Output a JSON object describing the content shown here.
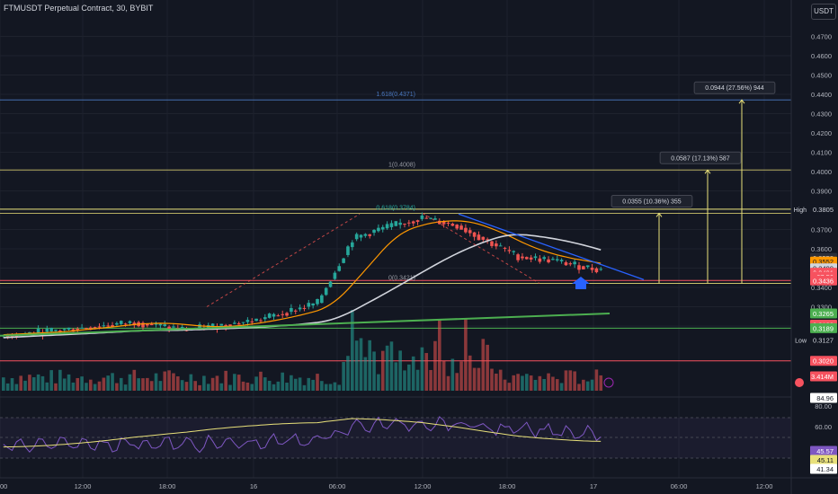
{
  "header": {
    "title": "FTMUSDT Perpetual Contract, 30, BYBIT",
    "currency_button": "USDT"
  },
  "chart_data": {
    "type": "candlestick",
    "price_axis_ticks": [
      "0.4700",
      "0.4600",
      "0.4500",
      "0.4400",
      "0.4300",
      "0.4200",
      "0.4100",
      "0.4000",
      "0.3900",
      "0.3800",
      "0.3700",
      "0.3600",
      "0.3500",
      "0.3400",
      "0.3300"
    ],
    "time_axis_ticks": [
      "00",
      "12:00",
      "18:00",
      "16",
      "06:00",
      "12:00",
      "18:00",
      "17",
      "06:00",
      "12:00"
    ],
    "fib_levels": [
      {
        "label": "1.618(0.4371)",
        "price": 0.4371
      },
      {
        "label": "1(0.4008)",
        "price": 0.4008
      },
      {
        "label": "0.618(0.3784)",
        "price": 0.3784
      },
      {
        "label": "0(0.3421)",
        "price": 0.3421
      }
    ],
    "targets": [
      {
        "label": "0.0355 (10.36%) 355",
        "price": 0.3784
      },
      {
        "label": "0.0587 (17.13%) 587",
        "price": 0.4008
      },
      {
        "label": "0.0944 (27.56%) 944",
        "price": 0.4371
      }
    ],
    "horizontal_lines": [
      {
        "price": 0.3805,
        "color": "#e8e07a"
      },
      {
        "price": 0.3436,
        "color": "#f7525f"
      },
      {
        "price": 0.3421,
        "color": "#e8e07a"
      },
      {
        "price": 0.3189,
        "color": "#4caf50"
      },
      {
        "price": 0.302,
        "color": "#f7525f"
      }
    ],
    "price_labels": [
      {
        "text": "High",
        "value": "0.3805",
        "bg": "#131722",
        "fg": "#d1d4dc",
        "price": 0.3805
      },
      {
        "text": "",
        "value": "0.3553",
        "bg": "#2a2e39",
        "fg": "#d1d4dc",
        "price": 0.3553
      },
      {
        "text": "",
        "value": "0.3552",
        "bg": "#ff9800",
        "fg": "#131722",
        "price": 0.3534
      },
      {
        "text": "",
        "value": "0.3499",
        "bg": "#d1d4dc",
        "fg": "#131722",
        "price": 0.3499
      },
      {
        "text": "",
        "value": "0.3491",
        "bg": "#f7525f",
        "fg": "#ffffff",
        "price": 0.3476
      },
      {
        "text": "",
        "value": "07:50",
        "bg": "#f7525f",
        "fg": "#ffffff",
        "price": 0.3456
      },
      {
        "text": "",
        "value": "0.3436",
        "bg": "#f7525f",
        "fg": "#ffffff",
        "price": 0.3436
      },
      {
        "text": "",
        "value": "0.3265",
        "bg": "#4caf50",
        "fg": "#ffffff",
        "price": 0.3265
      },
      {
        "text": "",
        "value": "0.3189",
        "bg": "#f7525f",
        "fg": "#ffffff",
        "price": 0.3207
      },
      {
        "text": "",
        "value": "0.3189",
        "bg": "#4caf50",
        "fg": "#ffffff",
        "price": 0.3189
      },
      {
        "text": "Low",
        "value": "0.3127",
        "bg": "#131722",
        "fg": "#d1d4dc",
        "price": 0.3127
      },
      {
        "text": "",
        "value": "0.3020",
        "bg": "#f7525f",
        "fg": "#ffffff",
        "price": 0.302
      },
      {
        "text": "",
        "value": "3.414M",
        "bg": "#f7525f",
        "fg": "#ffffff",
        "price": null
      }
    ],
    "rsi_axis": [
      "80.00",
      "60.00",
      "40.00"
    ],
    "rsi_labels": [
      {
        "value": "84.96",
        "bg": "#ffffff",
        "fg": "#131722"
      },
      {
        "value": "45.57",
        "bg": "#7e57c2",
        "fg": "#ffffff"
      },
      {
        "value": "45.11",
        "bg": "#e8e07a",
        "fg": "#131722"
      },
      {
        "value": "41.34",
        "bg": "#ffffff",
        "fg": "#131722"
      }
    ],
    "colors": {
      "up": "#26a69a",
      "down": "#ef5350",
      "ma_orange": "#ff9800",
      "ma_white": "#d1d4dc",
      "ma_green": "#4caf50",
      "trend_blue": "#2962ff",
      "rsi": "#7e57c2",
      "rsi_ma": "#e8e07a"
    }
  }
}
